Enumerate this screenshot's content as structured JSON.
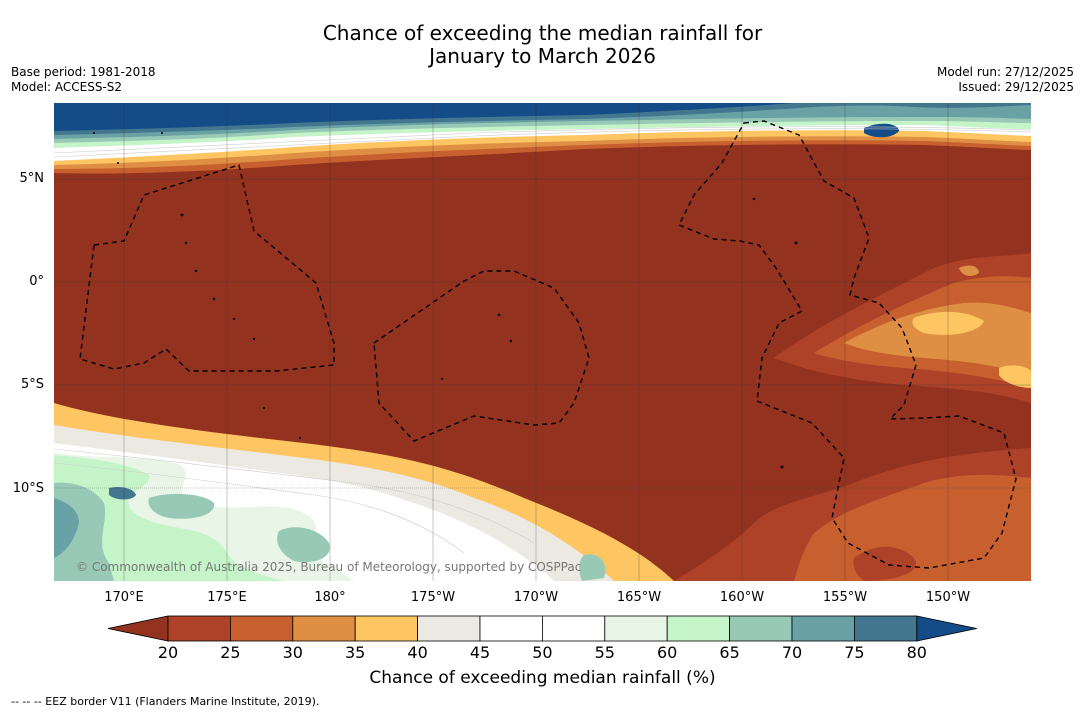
{
  "title": {
    "line1": "Chance of exceeding the median rainfall for",
    "line2": "January to March 2026"
  },
  "meta": {
    "base_period": "Base period: 1981-2018",
    "model": "Model: ACCESS-S2",
    "model_run": "Model run: 27/12/2025",
    "issued": "Issued: 29/12/2025"
  },
  "map": {
    "lat_labels": [
      "5°N",
      "0°",
      "5°S",
      "10°S"
    ],
    "lon_labels": [
      "170°E",
      "175°E",
      "180°",
      "175°W",
      "170°W",
      "165°W",
      "160°W",
      "155°W",
      "150°W"
    ],
    "copyright": "© Commonwealth of Australia 2025, Bureau of Meteorology, supported by COSPPac"
  },
  "colorbar": {
    "ticks": [
      "20",
      "25",
      "30",
      "35",
      "40",
      "45",
      "50",
      "55",
      "60",
      "65",
      "70",
      "75",
      "80"
    ],
    "colors": [
      "#943220",
      "#ad4229",
      "#c7602e",
      "#df8f43",
      "#fdc663",
      "#ece9e3",
      "#ffffff",
      "#ffffff",
      "#e9f5e6",
      "#c4f4c8",
      "#98c9b6",
      "#6aa1a5",
      "#43768f",
      "#144c87"
    ],
    "label": "Chance of exceeding median rainfall (%)"
  },
  "footnote": "--  --  -- EEZ border V11 (Flanders Marine Institute, 2019)."
}
